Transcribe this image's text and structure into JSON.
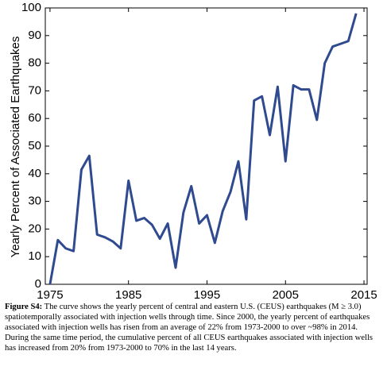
{
  "chart_data": {
    "type": "line",
    "ylabel": "Yearly Percent of Associated Earthquakes",
    "x": [
      1975,
      1976,
      1977,
      1978,
      1979,
      1980,
      1981,
      1982,
      1983,
      1984,
      1985,
      1986,
      1987,
      1988,
      1989,
      1990,
      1991,
      1992,
      1993,
      1994,
      1995,
      1996,
      1997,
      1998,
      1999,
      2000,
      2001,
      2002,
      2003,
      2004,
      2005,
      2006,
      2007,
      2008,
      2009,
      2010,
      2011,
      2012,
      2013,
      2014
    ],
    "series": [
      {
        "color": "#2f4a8f",
        "values": [
          0,
          16,
          13,
          12,
          41.5,
          46.5,
          18,
          17,
          15.5,
          13,
          37.5,
          23,
          24,
          21.5,
          16.5,
          22,
          6,
          26,
          35.5,
          22,
          25,
          15,
          26.5,
          33.5,
          44.5,
          23.5,
          66.5,
          68,
          54,
          71.5,
          44.5,
          72,
          70.5,
          70.5,
          59.5,
          80,
          86,
          87,
          88,
          98
        ]
      }
    ],
    "xlim": [
      1974.4,
      2015.4
    ],
    "xticks": [
      1975,
      1985,
      1995,
      2005,
      2015
    ],
    "ylim": [
      0,
      100
    ],
    "yticks": [
      0,
      10,
      20,
      30,
      40,
      50,
      60,
      70,
      80,
      90,
      100
    ],
    "grid": false
  },
  "caption": {
    "label": "Figure S4:",
    "text": " The curve shows the yearly percent of central and eastern U.S. (CEUS) earthquakes (M ≥ 3.0) spatiotemporally associated with injection wells through time. Since 2000, the yearly percent of earthquakes associated with injection wells has risen from an average of 22% from 1973-2000 to over ~98% in 2014. During the same time period, the cumulative percent of all CEUS earthquakes associated with injection wells has increased from 20% from 1973-2000 to 70% in the last 14 years."
  }
}
